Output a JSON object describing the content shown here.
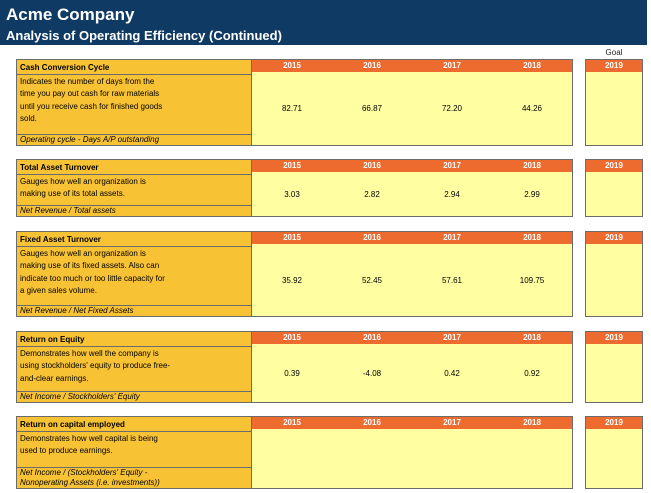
{
  "company": "Acme Company",
  "subtitle": "Analysis of Operating Efficiency (Continued)",
  "goal_label": "Goal",
  "goal_year": "2019",
  "years": [
    "2015",
    "2016",
    "2017",
    "2018"
  ],
  "metrics": [
    {
      "title": "Cash Conversion Cycle",
      "description": [
        "Indicates the number of days from the",
        "time you pay out cash for raw materials",
        "until you receive cash for finished goods",
        "sold."
      ],
      "formula": [
        "Operating cycle - Days A/P outstanding"
      ],
      "values": [
        "82.71",
        "66.87",
        "72.20",
        "44.26"
      ]
    },
    {
      "title": "Total Asset Turnover",
      "description": [
        "Gauges how well an organization is",
        "making use of its total assets."
      ],
      "formula": [
        "Net Revenue / Total assets"
      ],
      "values": [
        "3.03",
        "2.82",
        "2.94",
        "2.99"
      ]
    },
    {
      "title": "Fixed Asset Turnover",
      "description": [
        "Gauges how well an organization is",
        "making use of its fixed assets.  Also can",
        "indicate too much or too little capacity for",
        "a given sales volume."
      ],
      "formula": [
        "Net Revenue / Net Fixed Assets"
      ],
      "values": [
        "35.92",
        "52.45",
        "57.61",
        "109.75"
      ]
    },
    {
      "title": "Return on Equity",
      "description": [
        "Demonstrates how well the company is",
        "using stockholders' equity to produce free-",
        "and-clear earnings."
      ],
      "formula": [
        "Net Income / Stockholders' Equity"
      ],
      "values": [
        "0.39",
        "-4.08",
        "0.42",
        "0.92"
      ]
    },
    {
      "title": "Return on capital employed",
      "description": [
        "Demonstrates how well capital is being",
        "used to produce earnings."
      ],
      "formula": [
        "Net Income / (Stockholders' Equity -",
        "Nonoperating Assets (i.e. investments))"
      ],
      "values": [
        "",
        "",
        "",
        ""
      ]
    }
  ]
}
